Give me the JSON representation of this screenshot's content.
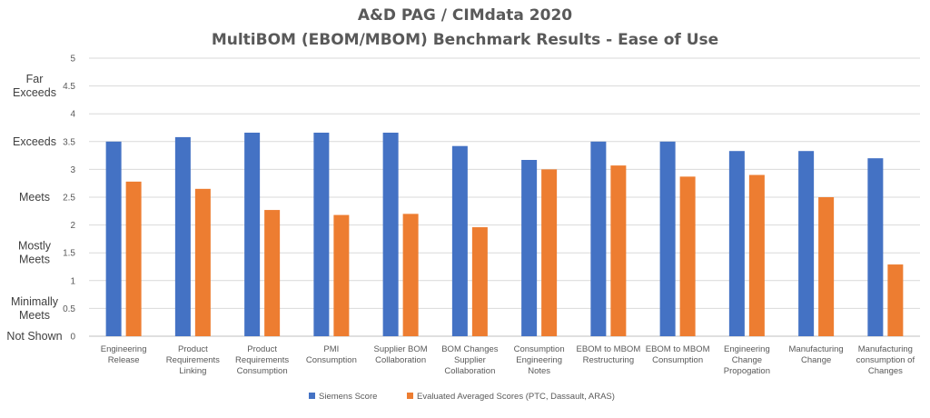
{
  "chart_data": {
    "type": "bar",
    "title": "A&D PAG / CIMdata 2020",
    "subtitle": "MultiBOM (EBOM/MBOM) Benchmark Results - Ease of Use",
    "ylim": [
      0,
      5
    ],
    "yticks": [
      "0",
      "0.5",
      "1",
      "1.5",
      "2",
      "2.5",
      "3",
      "3.5",
      "4",
      "4.5",
      "5"
    ],
    "ylevels": [
      {
        "value": 4.5,
        "lines": [
          "Far",
          "Exceeds"
        ]
      },
      {
        "value": 3.5,
        "lines": [
          "Exceeds"
        ]
      },
      {
        "value": 2.5,
        "lines": [
          "Meets"
        ]
      },
      {
        "value": 1.5,
        "lines": [
          "Mostly",
          "Meets"
        ]
      },
      {
        "value": 0.5,
        "lines": [
          "Minimally",
          "Meets"
        ]
      },
      {
        "value": 0,
        "lines": [
          "Not Shown"
        ]
      }
    ],
    "categories": [
      [
        "Engineering",
        "Release"
      ],
      [
        "Product",
        "Requirements",
        "Linking"
      ],
      [
        "Product",
        "Requirements",
        "Consumption"
      ],
      [
        "PMI",
        "Consumption"
      ],
      [
        "Supplier BOM",
        "Collaboration"
      ],
      [
        "BOM Changes",
        "Supplier",
        "Collaboration"
      ],
      [
        "Consumption",
        "Engineering",
        "Notes"
      ],
      [
        "EBOM to MBOM",
        "Restructuring"
      ],
      [
        "EBOM to MBOM",
        "Consumption"
      ],
      [
        "Engineering",
        "Change",
        "Propogation"
      ],
      [
        "Manufacturing",
        "Change"
      ],
      [
        "Manufacturing",
        "consumption of",
        "Changes"
      ]
    ],
    "series": [
      {
        "name": "Siemens Score",
        "color": "#4472C4",
        "values": [
          3.5,
          3.58,
          3.66,
          3.66,
          3.66,
          3.42,
          3.17,
          3.5,
          3.5,
          3.33,
          3.33,
          3.2
        ]
      },
      {
        "name": "Evaluated Averaged Scores (PTC, Dassault, ARAS)",
        "color": "#ED7D31",
        "values": [
          2.78,
          2.65,
          2.27,
          2.18,
          2.2,
          1.96,
          3.0,
          3.07,
          2.87,
          2.9,
          2.5,
          1.29
        ]
      }
    ],
    "grid": true,
    "legend": "bottom"
  }
}
